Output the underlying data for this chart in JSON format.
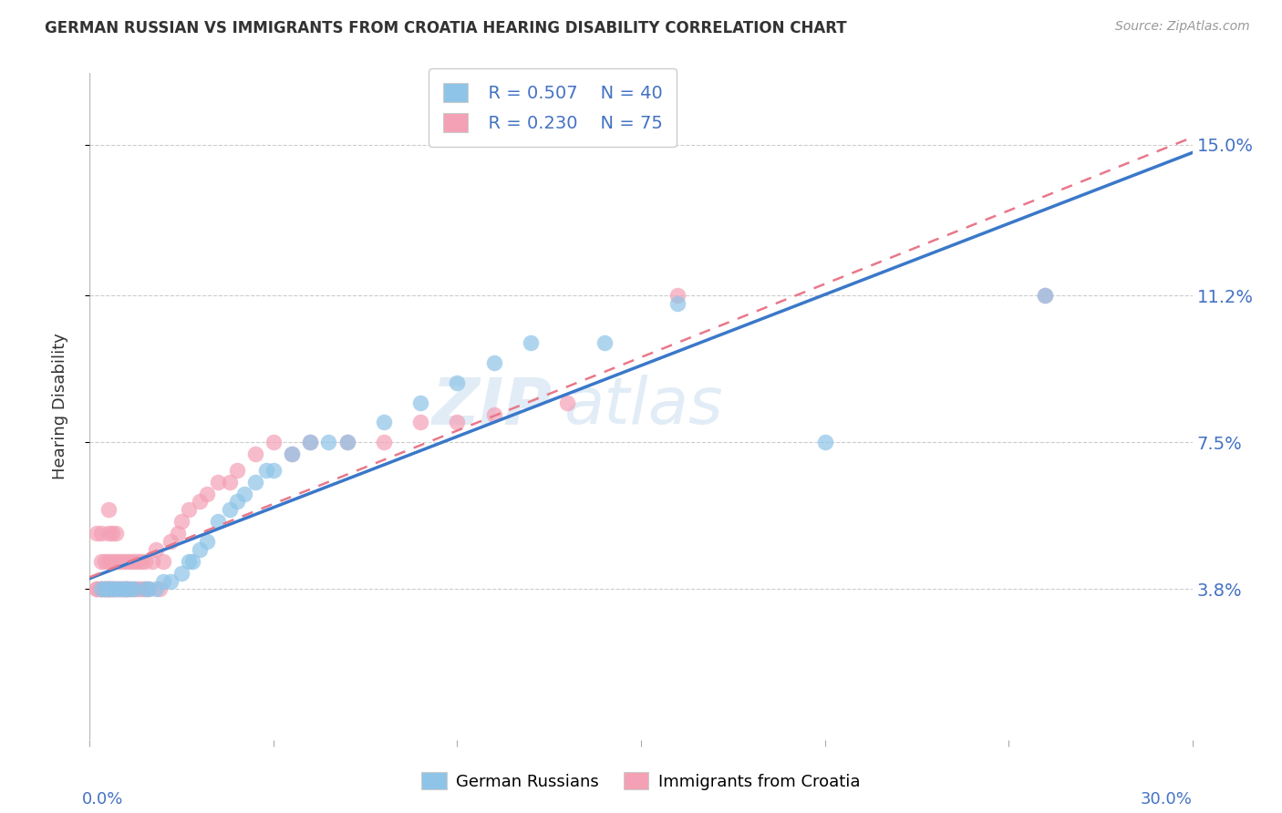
{
  "title": "GERMAN RUSSIAN VS IMMIGRANTS FROM CROATIA HEARING DISABILITY CORRELATION CHART",
  "source": "Source: ZipAtlas.com",
  "ylabel": "Hearing Disability",
  "ytick_labels": [
    "3.8%",
    "7.5%",
    "11.2%",
    "15.0%"
  ],
  "ytick_values": [
    0.038,
    0.075,
    0.112,
    0.15
  ],
  "xlim": [
    0.0,
    0.3
  ],
  "ylim": [
    0.0,
    0.168
  ],
  "watermark_zip": "ZIP",
  "watermark_atlas": "atlas",
  "legend_blue_r": "R = 0.507",
  "legend_blue_n": "N = 40",
  "legend_pink_r": "R = 0.230",
  "legend_pink_n": "N = 75",
  "blue_color": "#8ec4e8",
  "pink_color": "#f4a0b5",
  "blue_line_color": "#3a78c9",
  "pink_line_color": "#e8788a",
  "background_color": "#ffffff",
  "german_russians_label": "German Russians",
  "croatia_label": "Immigrants from Croatia",
  "blue_scatter_x": [
    0.003,
    0.004,
    0.005,
    0.006,
    0.007,
    0.008,
    0.009,
    0.01,
    0.011,
    0.012,
    0.015,
    0.016,
    0.018,
    0.02,
    0.022,
    0.025,
    0.027,
    0.028,
    0.03,
    0.032,
    0.035,
    0.038,
    0.04,
    0.042,
    0.045,
    0.048,
    0.05,
    0.055,
    0.06,
    0.065,
    0.07,
    0.08,
    0.09,
    0.1,
    0.11,
    0.12,
    0.14,
    0.16,
    0.2,
    0.26
  ],
  "blue_scatter_y": [
    0.038,
    0.038,
    0.038,
    0.038,
    0.038,
    0.038,
    0.038,
    0.038,
    0.038,
    0.038,
    0.038,
    0.038,
    0.038,
    0.04,
    0.04,
    0.042,
    0.045,
    0.045,
    0.048,
    0.05,
    0.055,
    0.058,
    0.06,
    0.062,
    0.065,
    0.068,
    0.068,
    0.072,
    0.075,
    0.075,
    0.075,
    0.08,
    0.085,
    0.09,
    0.095,
    0.1,
    0.1,
    0.11,
    0.075,
    0.112
  ],
  "pink_scatter_x": [
    0.002,
    0.002,
    0.002,
    0.003,
    0.003,
    0.003,
    0.003,
    0.003,
    0.004,
    0.004,
    0.004,
    0.004,
    0.005,
    0.005,
    0.005,
    0.005,
    0.005,
    0.005,
    0.005,
    0.005,
    0.006,
    0.006,
    0.006,
    0.006,
    0.006,
    0.007,
    0.007,
    0.007,
    0.007,
    0.008,
    0.008,
    0.008,
    0.009,
    0.009,
    0.009,
    0.01,
    0.01,
    0.01,
    0.01,
    0.011,
    0.011,
    0.012,
    0.012,
    0.013,
    0.013,
    0.014,
    0.014,
    0.015,
    0.015,
    0.016,
    0.017,
    0.018,
    0.019,
    0.02,
    0.022,
    0.024,
    0.025,
    0.027,
    0.03,
    0.032,
    0.035,
    0.038,
    0.04,
    0.045,
    0.05,
    0.055,
    0.06,
    0.07,
    0.08,
    0.09,
    0.1,
    0.11,
    0.13,
    0.16,
    0.26
  ],
  "pink_scatter_y": [
    0.038,
    0.038,
    0.052,
    0.038,
    0.038,
    0.038,
    0.045,
    0.052,
    0.038,
    0.038,
    0.038,
    0.045,
    0.038,
    0.038,
    0.038,
    0.038,
    0.038,
    0.045,
    0.052,
    0.058,
    0.038,
    0.038,
    0.038,
    0.045,
    0.052,
    0.038,
    0.038,
    0.045,
    0.052,
    0.038,
    0.038,
    0.045,
    0.038,
    0.038,
    0.045,
    0.038,
    0.038,
    0.038,
    0.045,
    0.038,
    0.045,
    0.038,
    0.045,
    0.038,
    0.045,
    0.038,
    0.045,
    0.038,
    0.045,
    0.038,
    0.045,
    0.048,
    0.038,
    0.045,
    0.05,
    0.052,
    0.055,
    0.058,
    0.06,
    0.062,
    0.065,
    0.065,
    0.068,
    0.072,
    0.075,
    0.072,
    0.075,
    0.075,
    0.075,
    0.08,
    0.08,
    0.082,
    0.085,
    0.112,
    0.112
  ]
}
